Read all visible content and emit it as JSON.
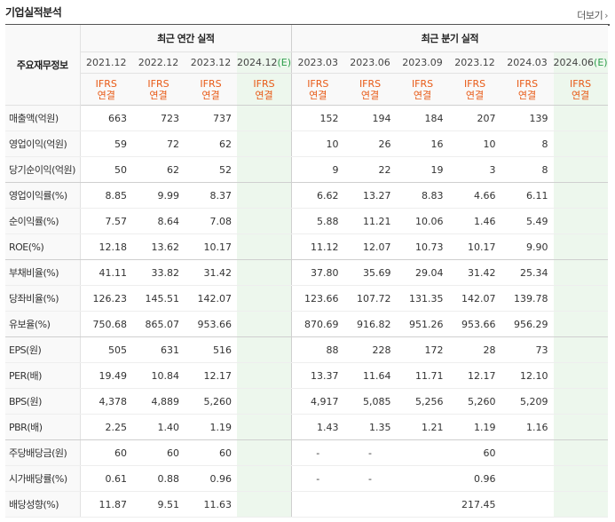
{
  "header": {
    "title": "기업실적분석",
    "more_label": "더보기"
  },
  "table": {
    "label_header": "주요재무정보",
    "annual_group": "최근 연간 실적",
    "quarter_group": "최근 분기 실적",
    "periods": [
      "2021.12",
      "2022.12",
      "2023.12",
      "2024.12",
      "2023.03",
      "2023.06",
      "2023.09",
      "2023.12",
      "2024.03",
      "2024.06"
    ],
    "estimate_mark": "(E)",
    "basis_line1": "IFRS",
    "basis_line2": "연결",
    "rows": [
      {
        "label": "매출액(억원)",
        "values": [
          "663",
          "723",
          "737",
          "",
          "152",
          "194",
          "184",
          "207",
          "139",
          ""
        ]
      },
      {
        "label": "영업이익(억원)",
        "values": [
          "59",
          "72",
          "62",
          "",
          "10",
          "26",
          "16",
          "10",
          "8",
          ""
        ]
      },
      {
        "label": "당기순이익(억원)",
        "values": [
          "50",
          "62",
          "52",
          "",
          "9",
          "22",
          "19",
          "3",
          "8",
          ""
        ]
      },
      {
        "label": "영업이익률(%)",
        "values": [
          "8.85",
          "9.99",
          "8.37",
          "",
          "6.62",
          "13.27",
          "8.83",
          "4.66",
          "6.11",
          ""
        ]
      },
      {
        "label": "순이익률(%)",
        "values": [
          "7.57",
          "8.64",
          "7.08",
          "",
          "5.88",
          "11.21",
          "10.06",
          "1.46",
          "5.49",
          ""
        ]
      },
      {
        "label": "ROE(%)",
        "values": [
          "12.18",
          "13.62",
          "10.17",
          "",
          "11.12",
          "12.07",
          "10.73",
          "10.17",
          "9.90",
          ""
        ]
      },
      {
        "label": "부채비율(%)",
        "values": [
          "41.11",
          "33.82",
          "31.42",
          "",
          "37.80",
          "35.69",
          "29.04",
          "31.42",
          "25.34",
          ""
        ]
      },
      {
        "label": "당좌비율(%)",
        "values": [
          "126.23",
          "145.51",
          "142.07",
          "",
          "123.66",
          "107.72",
          "131.35",
          "142.07",
          "139.78",
          ""
        ]
      },
      {
        "label": "유보율(%)",
        "values": [
          "750.68",
          "865.07",
          "953.66",
          "",
          "870.69",
          "916.82",
          "951.26",
          "953.66",
          "956.29",
          ""
        ]
      },
      {
        "label": "EPS(원)",
        "values": [
          "505",
          "631",
          "516",
          "",
          "88",
          "228",
          "172",
          "28",
          "73",
          ""
        ]
      },
      {
        "label": "PER(배)",
        "values": [
          "19.49",
          "10.84",
          "12.17",
          "",
          "13.37",
          "11.64",
          "11.71",
          "12.17",
          "12.10",
          ""
        ]
      },
      {
        "label": "BPS(원)",
        "values": [
          "4,378",
          "4,889",
          "5,260",
          "",
          "4,917",
          "5,085",
          "5,256",
          "5,260",
          "5,209",
          ""
        ]
      },
      {
        "label": "PBR(배)",
        "values": [
          "2.25",
          "1.40",
          "1.19",
          "",
          "1.43",
          "1.35",
          "1.21",
          "1.19",
          "1.16",
          ""
        ]
      },
      {
        "label": "주당배당금(원)",
        "values": [
          "60",
          "60",
          "60",
          "",
          "-",
          "-",
          "",
          "60",
          "",
          ""
        ]
      },
      {
        "label": "시가배당률(%)",
        "values": [
          "0.61",
          "0.88",
          "0.96",
          "",
          "-",
          "-",
          "",
          "0.96",
          "",
          ""
        ]
      },
      {
        "label": "배당성향(%)",
        "values": [
          "11.87",
          "9.51",
          "11.63",
          "",
          "",
          "",
          "",
          "217.45",
          "",
          ""
        ]
      }
    ]
  }
}
